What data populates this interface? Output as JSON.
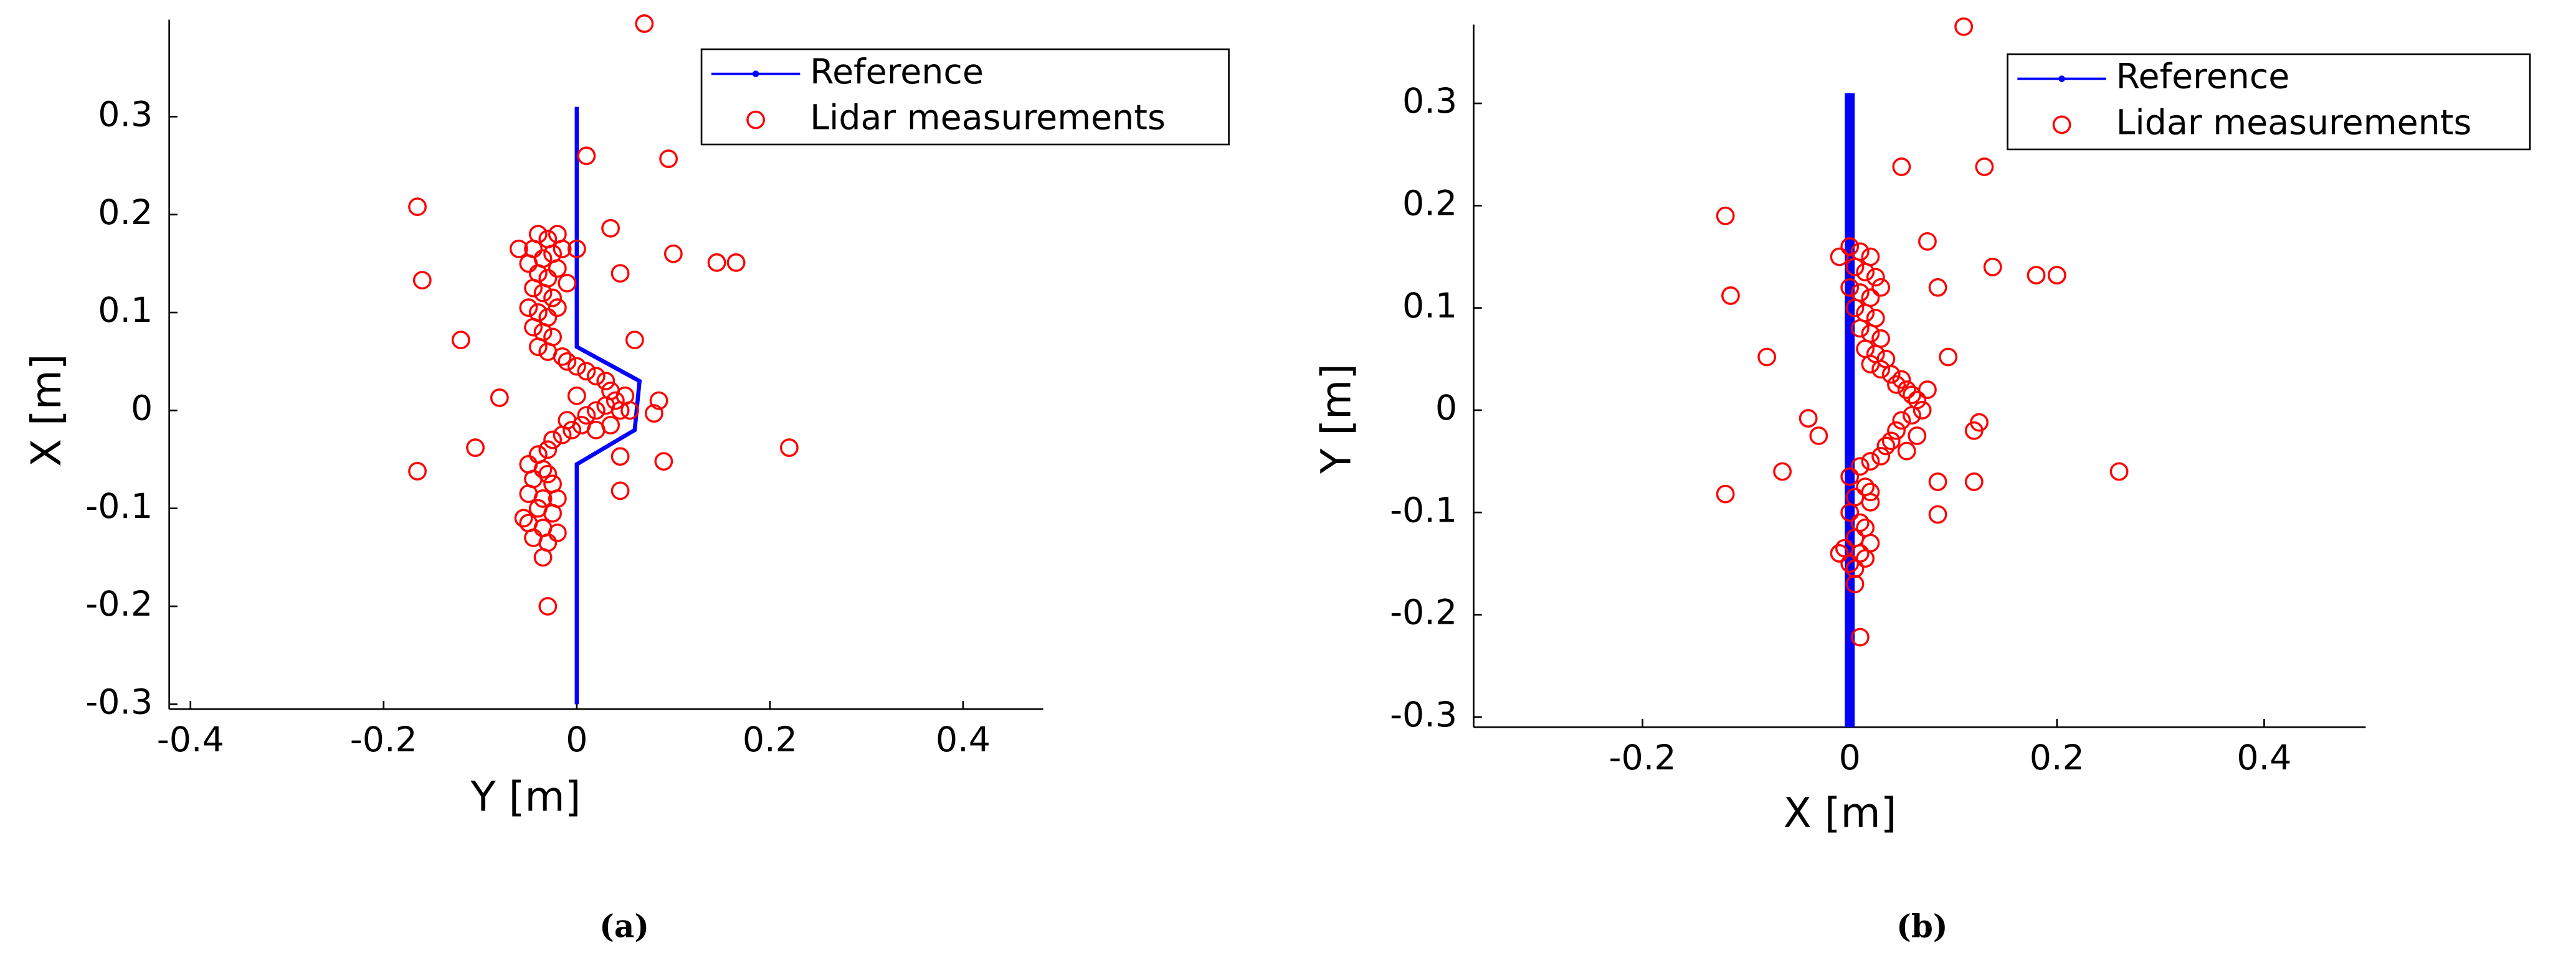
{
  "chart_data": [
    {
      "type": "scatter",
      "caption": "(a)",
      "xlabel": "Y [m]",
      "ylabel": "X [m]",
      "xlim": [
        -0.422,
        0.483
      ],
      "ylim": [
        -0.305,
        0.399
      ],
      "xticks": [
        -0.4,
        -0.2,
        0,
        0.2,
        0.4
      ],
      "yticks": [
        -0.3,
        -0.2,
        -0.1,
        0,
        0.1,
        0.2,
        0.3
      ],
      "legend": "upper right",
      "line_width": 2.5,
      "series": [
        {
          "name": "Reference",
          "color": "#0000ff",
          "style": "line",
          "x": [
            0,
            0,
            0.06,
            0.065,
            0,
            0
          ],
          "y": [
            -0.3,
            -0.055,
            -0.02,
            0.03,
            0.065,
            0.31
          ]
        },
        {
          "name": "Lidar measurements",
          "color": "#ff0000",
          "style": "markers",
          "x": [
            0.07,
            0.01,
            0.095,
            -0.165,
            -0.16,
            0.035,
            0.1,
            0.145,
            0.165,
            0.045,
            -0.12,
            0.06,
            -0.08,
            -0.105,
            -0.165,
            0.22,
            0.085,
            0.08,
            0.045,
            0.09,
            0.045,
            -0.03,
            0.0,
            -0.04,
            -0.03,
            -0.02,
            -0.045,
            -0.035,
            -0.025,
            -0.05,
            -0.04,
            -0.03,
            -0.02,
            -0.045,
            -0.035,
            -0.025,
            -0.05,
            -0.04,
            -0.03,
            -0.02,
            -0.045,
            -0.035,
            -0.025,
            -0.04,
            -0.03,
            -0.015,
            -0.01,
            -0.01,
            -0.015,
            -0.06,
            0.0,
            0.01,
            0.02,
            0.03,
            0.035,
            0.04,
            0.045,
            0.03,
            0.02,
            0.01,
            0.005,
            -0.005,
            -0.015,
            -0.025,
            0.02,
            0.035,
            0.05,
            0.055,
            0.0,
            -0.01,
            -0.03,
            -0.04,
            -0.05,
            -0.035,
            -0.045,
            -0.025,
            -0.05,
            -0.035,
            -0.04,
            -0.025,
            -0.05,
            -0.035,
            -0.02,
            -0.045,
            -0.03,
            -0.035,
            -0.055,
            -0.02,
            -0.03
          ],
          "y": [
            0.395,
            0.26,
            0.257,
            0.208,
            0.133,
            0.186,
            0.16,
            0.151,
            0.151,
            0.14,
            0.072,
            0.072,
            0.013,
            -0.038,
            -0.062,
            -0.038,
            0.01,
            -0.003,
            -0.047,
            -0.052,
            -0.082,
            -0.2,
            0.165,
            0.18,
            0.175,
            0.18,
            0.165,
            0.155,
            0.16,
            0.15,
            0.14,
            0.135,
            0.145,
            0.125,
            0.12,
            0.115,
            0.105,
            0.1,
            0.095,
            0.105,
            0.085,
            0.08,
            0.075,
            0.065,
            0.06,
            0.055,
            0.05,
            0.13,
            0.165,
            0.165,
            0.045,
            0.04,
            0.035,
            0.03,
            0.02,
            0.01,
            0.0,
            0.005,
            0.0,
            -0.005,
            -0.015,
            -0.02,
            -0.025,
            -0.03,
            -0.02,
            -0.015,
            0.015,
            0.0,
            0.015,
            -0.01,
            -0.04,
            -0.045,
            -0.055,
            -0.06,
            -0.07,
            -0.075,
            -0.085,
            -0.09,
            -0.1,
            -0.105,
            -0.115,
            -0.12,
            -0.125,
            -0.13,
            -0.135,
            -0.15,
            -0.11,
            -0.09,
            -0.065
          ]
        }
      ]
    },
    {
      "type": "scatter",
      "caption": "(b)",
      "xlabel": "X [m]",
      "ylabel": "Y [m]",
      "xlim": [
        -0.363,
        0.498
      ],
      "ylim": [
        -0.31,
        0.377
      ],
      "xticks": [
        -0.2,
        0,
        0.2,
        0.4
      ],
      "yticks": [
        -0.3,
        -0.2,
        -0.1,
        0,
        0.1,
        0.2,
        0.3
      ],
      "legend": "upper right",
      "line_width": 6,
      "series": [
        {
          "name": "Reference",
          "color": "#0000ff",
          "style": "line",
          "x": [
            0,
            0
          ],
          "y": [
            -0.31,
            0.31
          ]
        },
        {
          "name": "Lidar measurements",
          "color": "#ff0000",
          "style": "markers",
          "x": [
            0.11,
            0.05,
            0.13,
            -0.12,
            0.075,
            0.138,
            0.18,
            0.2,
            -0.115,
            0.085,
            -0.08,
            0.095,
            -0.04,
            -0.03,
            -0.065,
            -0.12,
            0.12,
            0.125,
            0.12,
            0.26,
            0.085,
            0.085,
            0.01,
            0.005,
            0.0,
            0.01,
            0.02,
            0.005,
            0.015,
            0.025,
            0.0,
            0.01,
            0.02,
            0.03,
            0.005,
            0.015,
            0.025,
            0.01,
            0.02,
            0.03,
            0.015,
            0.025,
            0.035,
            0.02,
            -0.01,
            0.03,
            0.04,
            0.05,
            0.055,
            0.06,
            0.065,
            0.07,
            0.06,
            0.05,
            0.045,
            0.04,
            0.055,
            0.065,
            0.035,
            0.03,
            0.045,
            0.075,
            0.02,
            0.01,
            0.0,
            0.015,
            0.005,
            0.02,
            0.0,
            0.01,
            0.015,
            0.005,
            0.02,
            -0.005,
            0.01,
            0.015,
            0.0,
            0.005,
            0.02,
            -0.01
          ],
          "y": [
            0.375,
            0.238,
            0.238,
            0.19,
            0.165,
            0.14,
            0.132,
            0.132,
            0.112,
            0.12,
            0.052,
            0.052,
            -0.008,
            -0.025,
            -0.06,
            -0.082,
            -0.02,
            -0.012,
            -0.07,
            -0.06,
            -0.07,
            -0.102,
            -0.222,
            -0.17,
            0.16,
            0.155,
            0.15,
            0.14,
            0.135,
            0.13,
            0.12,
            0.115,
            0.11,
            0.12,
            0.1,
            0.095,
            0.09,
            0.08,
            0.075,
            0.07,
            0.06,
            0.055,
            0.05,
            0.045,
            0.15,
            0.04,
            0.035,
            0.03,
            0.02,
            0.015,
            0.01,
            0.0,
            -0.005,
            -0.01,
            -0.02,
            -0.03,
            -0.04,
            -0.025,
            -0.035,
            -0.045,
            0.025,
            0.02,
            -0.05,
            -0.055,
            -0.065,
            -0.075,
            -0.085,
            -0.09,
            -0.1,
            -0.11,
            -0.115,
            -0.125,
            -0.13,
            -0.135,
            -0.14,
            -0.145,
            -0.15,
            -0.155,
            -0.08,
            -0.14
          ]
        }
      ]
    }
  ]
}
